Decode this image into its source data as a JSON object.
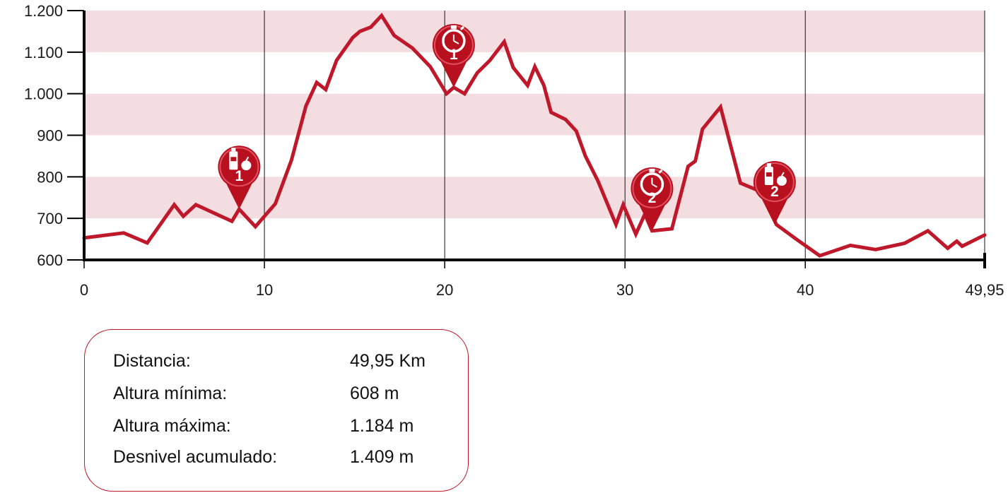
{
  "chart_data": {
    "type": "area",
    "title": "",
    "xlabel": "",
    "ylabel": "",
    "xlim": [
      0,
      49.95
    ],
    "ylim": [
      600,
      1200
    ],
    "x_ticks": [
      0,
      10,
      20,
      30,
      40,
      49.95
    ],
    "x_tick_labels": [
      "0",
      "10",
      "20",
      "30",
      "40",
      "49,95"
    ],
    "y_ticks": [
      600,
      700,
      800,
      900,
      1000,
      1100,
      1200
    ],
    "y_tick_labels": [
      "600",
      "700",
      "800",
      "900",
      "1.000",
      "1.100",
      "1.200"
    ],
    "vertical_gridlines": [
      10,
      20,
      30,
      40,
      49.95
    ],
    "band_color": "#f4dde0",
    "line_color": "#c0182b",
    "series": [
      {
        "points": [
          [
            0,
            653
          ],
          [
            2.2,
            665
          ],
          [
            3.5,
            641
          ],
          [
            5,
            733
          ],
          [
            5.5,
            705
          ],
          [
            6.2,
            733
          ],
          [
            8.2,
            693
          ],
          [
            8.6,
            722
          ],
          [
            9.5,
            680
          ],
          [
            10.6,
            735
          ],
          [
            11.5,
            840
          ],
          [
            12.3,
            970
          ],
          [
            12.9,
            1027
          ],
          [
            13.4,
            1010
          ],
          [
            14,
            1080
          ],
          [
            14.9,
            1135
          ],
          [
            15.3,
            1150
          ],
          [
            15.9,
            1160
          ],
          [
            16.5,
            1188
          ],
          [
            17.2,
            1140
          ],
          [
            18.2,
            1110
          ],
          [
            19.2,
            1065
          ],
          [
            20.1,
            1000
          ],
          [
            20.5,
            1015
          ],
          [
            21.1,
            1000
          ],
          [
            21.8,
            1050
          ],
          [
            22.5,
            1080
          ],
          [
            23.3,
            1125
          ],
          [
            23.8,
            1063
          ],
          [
            24.6,
            1020
          ],
          [
            25,
            1065
          ],
          [
            25.5,
            1020
          ],
          [
            25.9,
            955
          ],
          [
            26.7,
            938
          ],
          [
            27.3,
            910
          ],
          [
            27.8,
            850
          ],
          [
            28.5,
            790
          ],
          [
            29.5,
            685
          ],
          [
            29.9,
            733
          ],
          [
            30.6,
            662
          ],
          [
            31.1,
            710
          ],
          [
            31.5,
            670
          ],
          [
            32.6,
            675
          ],
          [
            33.5,
            825
          ],
          [
            33.9,
            838
          ],
          [
            34.3,
            915
          ],
          [
            35.3,
            968
          ],
          [
            36.4,
            785
          ],
          [
            37.5,
            765
          ],
          [
            38.4,
            685
          ],
          [
            39.5,
            650
          ],
          [
            40.8,
            610
          ],
          [
            42.5,
            635
          ],
          [
            43.9,
            625
          ],
          [
            45.5,
            640
          ],
          [
            46.8,
            670
          ],
          [
            47.9,
            628
          ],
          [
            48.4,
            645
          ],
          [
            48.7,
            633
          ],
          [
            49.95,
            660
          ]
        ]
      }
    ],
    "markers": [
      {
        "kind": "avituallamiento",
        "icon": "bottle-apple-icon",
        "number": "1",
        "x": 8.6,
        "y": 722
      },
      {
        "kind": "control",
        "icon": "stopwatch-icon",
        "number": "1",
        "x": 20.5,
        "y": 1015
      },
      {
        "kind": "control",
        "icon": "stopwatch-icon",
        "number": "2",
        "x": 31.5,
        "y": 670
      },
      {
        "kind": "avituallamiento",
        "icon": "bottle-apple-icon",
        "number": "2",
        "x": 38.3,
        "y": 685
      }
    ]
  },
  "stats": [
    {
      "label": "Distancia:",
      "value": "49,95 Km"
    },
    {
      "label": "Altura mínima:",
      "value": "608 m"
    },
    {
      "label": "Altura máxima:",
      "value": "1.184 m"
    },
    {
      "label": "Desnivel acumulado:",
      "value": "1.409 m"
    }
  ]
}
